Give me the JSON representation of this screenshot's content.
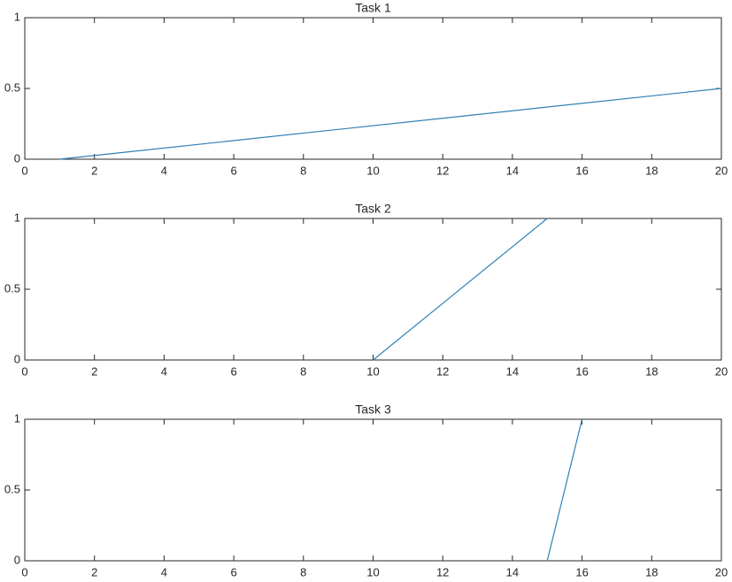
{
  "chart_data": [
    {
      "type": "line",
      "title": "Task 1",
      "x": [
        1,
        20
      ],
      "series": [
        {
          "color": "#2f7fb5",
          "values": [
            0,
            0.5
          ]
        }
      ],
      "xlim": [
        0,
        20
      ],
      "ylim": [
        0,
        1
      ],
      "xticks": [
        0,
        2,
        4,
        6,
        8,
        10,
        12,
        14,
        16,
        18,
        20
      ],
      "yticks": [
        0,
        0.5,
        1
      ]
    },
    {
      "type": "line",
      "title": "Task 2",
      "x": [
        10,
        15
      ],
      "series": [
        {
          "color": "#2f7fb5",
          "values": [
            0,
            1
          ]
        }
      ],
      "xlim": [
        0,
        20
      ],
      "ylim": [
        0,
        1
      ],
      "xticks": [
        0,
        2,
        4,
        6,
        8,
        10,
        12,
        14,
        16,
        18,
        20
      ],
      "yticks": [
        0,
        0.5,
        1
      ]
    },
    {
      "type": "line",
      "title": "Task 3",
      "x": [
        15,
        16
      ],
      "series": [
        {
          "color": "#2f7fb5",
          "values": [
            0,
            1
          ]
        }
      ],
      "xlim": [
        0,
        20
      ],
      "ylim": [
        0,
        1
      ],
      "xticks": [
        0,
        2,
        4,
        6,
        8,
        10,
        12,
        14,
        16,
        18,
        20
      ],
      "yticks": [
        0,
        0.5,
        1
      ]
    }
  ]
}
